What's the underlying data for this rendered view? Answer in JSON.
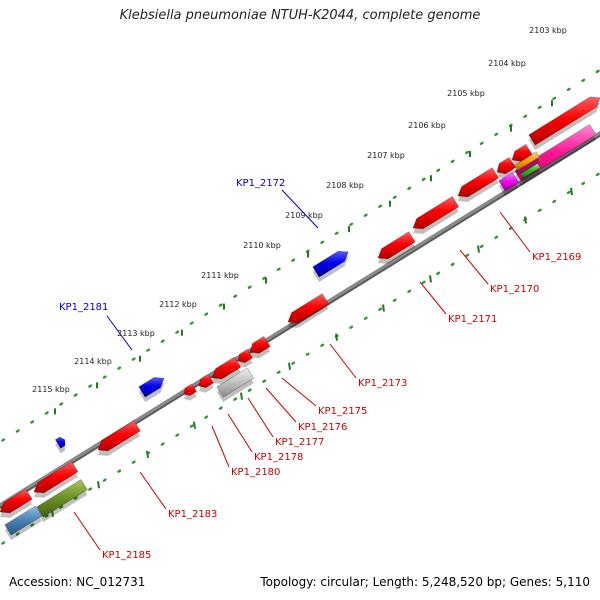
{
  "title": "Klebsiella pneumoniae NTUH-K2044, complete genome",
  "accession": "Accession: NC_012731",
  "topology": "Topology: circular; Length: 5,248,520 bp; Genes: 5,110",
  "colors": {
    "backbone": "#8a8a8a",
    "ruler_dots": "#2e9a2e",
    "red_gene": "#ff0000",
    "blue_gene": "#0000ee",
    "label_red": "#cc0000",
    "label_blue": "#0000cc"
  },
  "scale_ticks": [
    {
      "label": "2103 kbp"
    },
    {
      "label": "2104 kbp"
    },
    {
      "label": "2105 kbp"
    },
    {
      "label": "2106 kbp"
    },
    {
      "label": "2107 kbp"
    },
    {
      "label": "2108 kbp"
    },
    {
      "label": "2109 kbp"
    },
    {
      "label": "2110 kbp"
    },
    {
      "label": "2111 kbp"
    },
    {
      "label": "2112 kbp"
    },
    {
      "label": "2113 kbp"
    },
    {
      "label": "2114 kbp"
    },
    {
      "label": "2115 kbp"
    }
  ],
  "gene_labels": [
    {
      "name": "KP1_2172",
      "strand": "upper",
      "color": "blue"
    },
    {
      "name": "KP1_2181",
      "strand": "upper",
      "color": "blue"
    },
    {
      "name": "KP1_2169",
      "strand": "lower",
      "color": "red"
    },
    {
      "name": "KP1_2170",
      "strand": "lower",
      "color": "red"
    },
    {
      "name": "KP1_2171",
      "strand": "lower",
      "color": "red"
    },
    {
      "name": "KP1_2173",
      "strand": "lower",
      "color": "red"
    },
    {
      "name": "KP1_2175",
      "strand": "lower",
      "color": "red"
    },
    {
      "name": "KP1_2176",
      "strand": "lower",
      "color": "red"
    },
    {
      "name": "KP1_2177",
      "strand": "lower",
      "color": "red"
    },
    {
      "name": "KP1_2178",
      "strand": "lower",
      "color": "red"
    },
    {
      "name": "KP1_2180",
      "strand": "lower",
      "color": "red"
    },
    {
      "name": "KP1_2183",
      "strand": "lower",
      "color": "red"
    },
    {
      "name": "KP1_2185",
      "strand": "lower",
      "color": "red"
    }
  ]
}
